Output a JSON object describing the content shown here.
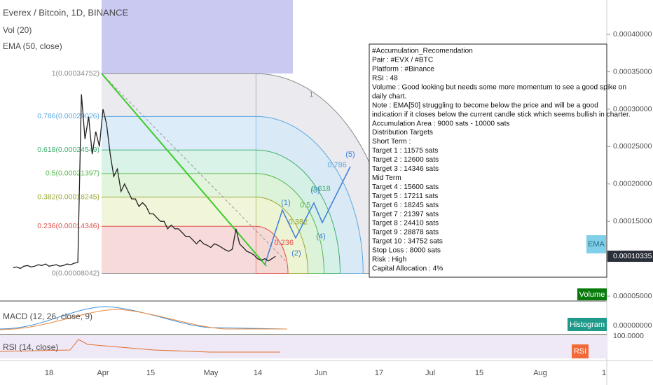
{
  "header": {
    "symbol": "Everex / Bitcoin, 1D, BINANCE",
    "indicators": [
      "Vol (20)",
      "EMA (50, close)"
    ]
  },
  "chart_data": {
    "type": "line",
    "color": "#222222",
    "closes": [
      8.8e-05,
      8.9e-05,
      8.7e-05,
      9e-05,
      9.1e-05,
      8.9e-05,
      9e-05,
      9.2e-05,
      9.1e-05,
      9.3e-05,
      9e-05,
      9.1e-05,
      9.2e-05,
      9e-05,
      9.1e-05,
      9.3e-05,
      9.2e-05,
      9.4e-05,
      9.5e-05,
      0.00032,
      0.00026,
      0.00029,
      0.00024,
      0.00027,
      0.00025,
      0.0003,
      0.00028,
      0.00024,
      0.00021,
      0.00022,
      0.00019,
      0.0002,
      0.00019,
      0.00018,
      0.00018,
      0.00017,
      0.000175,
      0.00017,
      0.00016,
      0.00016,
      0.000155,
      0.00015,
      0.00015,
      0.00014,
      0.000145,
      0.00014,
      0.00014,
      0.000135,
      0.00013,
      0.00013,
      0.000125,
      0.00012,
      0.000125,
      0.00012,
      0.000118,
      0.000115,
      0.00012,
      0.000118,
      0.000115,
      0.000112,
      0.00011,
      0.000113,
      0.00014,
      0.00012,
      0.000115,
      0.00011,
      0.000108,
      0.000105,
      0.0001,
      9.8e-05,
      0.0001,
      9.7e-05,
      0.0001,
      0.00010335
    ],
    "ylim": [
      4.35e-05,
      0.000446
    ],
    "yticks": [
      {
        "value": 0.0004,
        "label": "0.00040000"
      },
      {
        "value": 0.00035,
        "label": "0.00035000"
      },
      {
        "value": 0.0003,
        "label": "0.00030000"
      },
      {
        "value": 0.00025,
        "label": "0.00025000"
      },
      {
        "value": 0.0002,
        "label": "0.00020000"
      },
      {
        "value": 0.00015,
        "label": "0.00015000"
      },
      {
        "value": 5e-05,
        "label": "0.00005000"
      }
    ],
    "last_price": {
      "value": 0.00010335,
      "label": "0.00010335"
    }
  },
  "fib_levels": [
    {
      "ratio": 1,
      "price": 0.00034752,
      "label": "1(0.00034752)",
      "color": "#8c8c8c",
      "fill": "#e6e6ec"
    },
    {
      "ratio": 0.786,
      "price": 0.00029026,
      "label": "0.786(0.00029026)",
      "color": "#5ba8e0",
      "fill": "#d6e9f7"
    },
    {
      "ratio": 0.618,
      "price": 0.00024549,
      "label": "0.618(0.00024549)",
      "color": "#3fae6e",
      "fill": "#d4f1e4"
    },
    {
      "ratio": 0.5,
      "price": 0.00021397,
      "label": "0.5(0.00021397)",
      "color": "#56b84e",
      "fill": "#ddf3d6"
    },
    {
      "ratio": 0.382,
      "price": 0.00018245,
      "label": "0.382(0.00018245)",
      "color": "#9aa630",
      "fill": "#eef3d2"
    },
    {
      "ratio": 0.236,
      "price": 0.00014346,
      "label": "0.236(0.00014346)",
      "color": "#e0504a",
      "fill": "#f6d4d4"
    },
    {
      "ratio": 0,
      "price": 8.042e-05,
      "label": "0(0.00008042)",
      "color": "#8c8c8c",
      "fill": "#f6d4d4"
    }
  ],
  "date_axis": [
    "18",
    "Apr",
    "15",
    "May",
    "14",
    "Jun",
    "17",
    "Jul",
    "15",
    "Aug",
    "1"
  ],
  "waves": [
    "(1)",
    "(2)",
    "(3)",
    "(4)",
    "(5)"
  ],
  "note": {
    "lines": [
      "#Accumulation_Recomendation",
      "Pair : #EVX / #BTC",
      "Platform : #Binance",
      "RSI : 48",
      "Volume : Good looking but needs some more momentum to see a good spike on",
      "daily chart.",
      "Note : EMA[50] struggling to become below the price and will be a good",
      "indication if it closes below the current candle stick which seems bullish in charter.",
      "Accumulation Area : 9000 sats - 10000 sats",
      "Distribution Targets",
      "Short Term :",
      "Target 1 : 11575 sats",
      "Target 2 : 12600 sats",
      "Target 3 : 14346 sats",
      "Mid Term",
      "Target 4 : 15600 sats",
      "Target 5 : 17211 sats",
      "Target 6 : 18245 sats",
      "Target 7 : 21397 sats",
      "Target 8 : 24410 sats",
      "Target 9 : 28878 sats",
      "Target 10 : 34752 sats",
      "Stop Loss : 8000 sats",
      "Risk : High",
      "Capital Allocation : 4%"
    ]
  },
  "badges": {
    "ema": "EMA",
    "volume": "Volume",
    "histogram": "Histogram",
    "rsi": "RSI"
  },
  "macd": {
    "label": "MACD (12, 26, close, 9)",
    "tick": {
      "value": 0,
      "label": "0.00000000"
    }
  },
  "rsi": {
    "label": "RSI (14, close)",
    "tick": {
      "value": 100,
      "label": "100.0000"
    }
  }
}
